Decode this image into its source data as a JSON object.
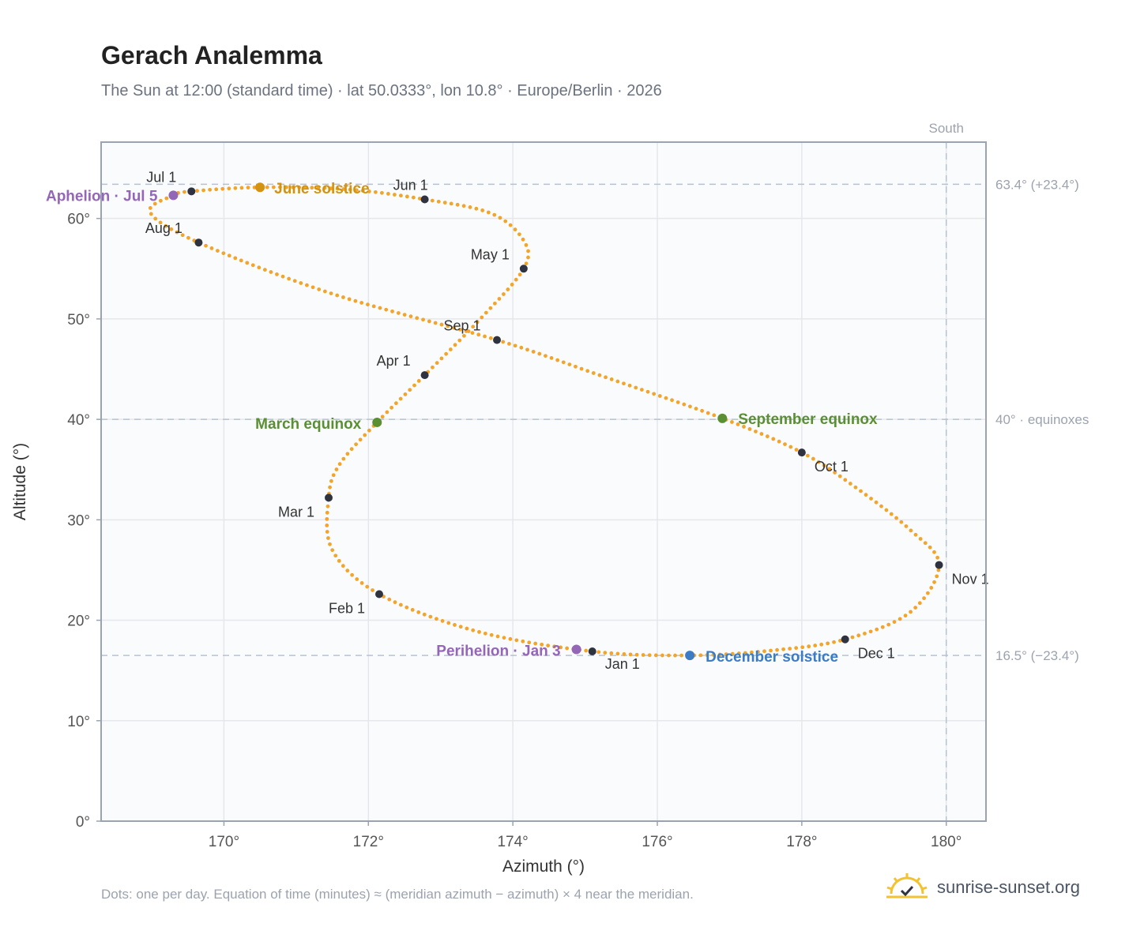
{
  "header": {
    "title": "Gerach Analemma",
    "subtitle": "The Sun at 12:00 (standard time) · lat 50.0333°, lon 10.8° · Europe/Berlin · 2026"
  },
  "footer": {
    "note": "Dots: one per day. Equation of time (minutes) ≈ (meridian azimuth − azimuth) × 4 near the meridian.",
    "brand": "sunrise-sunset.org",
    "logo_icon": "sun-check-icon"
  },
  "colors": {
    "curve": "#f2a52a",
    "month_marker": "#2f3340",
    "june_solstice": "#d4930e",
    "december_solstice": "#3b7cc4",
    "equinox": "#5a8f32",
    "apsis": "#9466b8",
    "plot_background": "#fafbfd",
    "grid": "#e5e7eb",
    "reference_line": "#b8c2cf"
  },
  "chart_data": {
    "type": "scatter",
    "title": "Gerach Analemma",
    "xlabel": "Azimuth (°)",
    "ylabel": "Altitude (°)",
    "xlim": [
      168.3,
      180.55
    ],
    "ylim": [
      0,
      67.6
    ],
    "xticks": [
      170,
      172,
      174,
      176,
      178,
      180
    ],
    "xtick_labels": [
      "170°",
      "172°",
      "174°",
      "176°",
      "178°",
      "180°"
    ],
    "yticks": [
      0,
      10,
      20,
      30,
      40,
      50,
      60
    ],
    "ytick_labels": [
      "0°",
      "10°",
      "20°",
      "30°",
      "40°",
      "50°",
      "60°"
    ],
    "grid": true,
    "meridian": {
      "azimuth": 180,
      "label": "South"
    },
    "reference_lines": [
      {
        "altitude": 63.4,
        "label": "63.4° (+23.4°)"
      },
      {
        "altitude": 40.0,
        "label": "40° · equinoxes"
      },
      {
        "altitude": 16.5,
        "label": "16.5° (−23.4°)"
      }
    ],
    "month_markers": [
      {
        "label": "Jan 1",
        "az": 175.1,
        "alt": 16.9
      },
      {
        "label": "Feb 1",
        "az": 172.15,
        "alt": 22.6
      },
      {
        "label": "Mar 1",
        "az": 171.45,
        "alt": 32.2
      },
      {
        "label": "Apr 1",
        "az": 172.78,
        "alt": 44.4
      },
      {
        "label": "May 1",
        "az": 174.15,
        "alt": 55.0
      },
      {
        "label": "Jun 1",
        "az": 172.78,
        "alt": 61.9
      },
      {
        "label": "Jul 1",
        "az": 169.55,
        "alt": 62.7
      },
      {
        "label": "Aug 1",
        "az": 169.65,
        "alt": 57.6
      },
      {
        "label": "Sep 1",
        "az": 173.78,
        "alt": 47.9
      },
      {
        "label": "Oct 1",
        "az": 178.0,
        "alt": 36.7
      },
      {
        "label": "Nov 1",
        "az": 179.9,
        "alt": 25.5
      },
      {
        "label": "Dec 1",
        "az": 178.6,
        "alt": 18.1
      }
    ],
    "events": [
      {
        "label": "June solstice",
        "az": 170.5,
        "alt": 63.1,
        "color_key": "june_solstice"
      },
      {
        "label": "December solstice",
        "az": 176.45,
        "alt": 16.5,
        "color_key": "december_solstice"
      },
      {
        "label": "March equinox",
        "az": 172.12,
        "alt": 39.7,
        "color_key": "equinox"
      },
      {
        "label": "September equinox",
        "az": 176.9,
        "alt": 40.1,
        "color_key": "equinox"
      },
      {
        "label": "Aphelion · Jul 5",
        "az": 169.3,
        "alt": 62.3,
        "color_key": "apsis"
      },
      {
        "label": "Perihelion · Jan 3",
        "az": 174.88,
        "alt": 17.1,
        "color_key": "apsis"
      }
    ],
    "curve_points": [
      [
        175.1,
        16.9
      ],
      [
        176.45,
        16.5
      ],
      [
        177.6,
        17.0
      ],
      [
        178.6,
        18.1
      ],
      [
        179.5,
        20.8
      ],
      [
        179.9,
        25.5
      ],
      [
        179.5,
        29.0
      ],
      [
        178.75,
        33.2
      ],
      [
        178.0,
        36.7
      ],
      [
        176.9,
        40.1
      ],
      [
        175.2,
        44.4
      ],
      [
        173.78,
        47.9
      ],
      [
        171.5,
        52.5
      ],
      [
        169.65,
        57.6
      ],
      [
        168.98,
        60.6
      ],
      [
        169.3,
        62.3
      ],
      [
        169.55,
        62.7
      ],
      [
        170.5,
        63.1
      ],
      [
        171.7,
        62.9
      ],
      [
        172.78,
        61.9
      ],
      [
        173.7,
        60.5
      ],
      [
        174.15,
        57.8
      ],
      [
        174.15,
        55.0
      ],
      [
        173.55,
        50.0
      ],
      [
        172.78,
        44.4
      ],
      [
        172.12,
        39.7
      ],
      [
        171.6,
        35.5
      ],
      [
        171.45,
        32.2
      ],
      [
        171.5,
        27.0
      ],
      [
        172.15,
        22.6
      ],
      [
        173.5,
        18.9
      ],
      [
        175.1,
        16.9
      ]
    ]
  }
}
